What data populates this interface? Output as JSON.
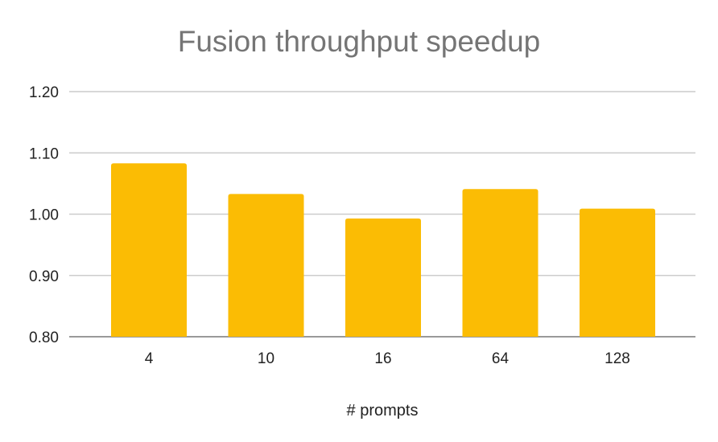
{
  "chart_data": {
    "type": "bar",
    "title": "Fusion throughput speedup",
    "xlabel": "# prompts",
    "ylabel": "",
    "categories": [
      "4",
      "10",
      "16",
      "64",
      "128"
    ],
    "values": [
      1.083,
      1.033,
      0.993,
      1.041,
      1.009
    ],
    "ylim": [
      0.8,
      1.2
    ],
    "yticks": [
      "0.80",
      "0.90",
      "1.00",
      "1.10",
      "1.20"
    ],
    "grid": true,
    "legend": "none",
    "bar_color": "#FBBC04",
    "grid_color": "#CCCCCC"
  }
}
